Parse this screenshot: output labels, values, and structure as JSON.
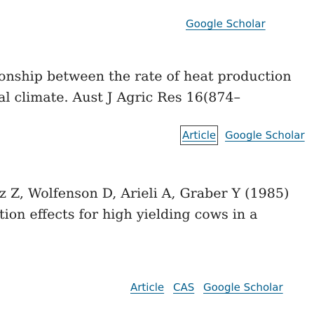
{
  "refs": [
    {
      "links": {
        "scholar": "Google Scholar"
      }
    },
    {
      "lines": [
        "onship between the rate of heat production",
        "al climate. Aust J Agric Res 16(874–"
      ],
      "links": {
        "article": "Article",
        "scholar": "Google Scholar"
      }
    },
    {
      "lines": [
        "z Z, Wolfenson D, Arieli A, Graber Y (1985)",
        "tion effects for high yielding cows in a"
      ],
      "links": {
        "article": "Article",
        "cas": "CAS",
        "scholar": "Google Scholar"
      }
    }
  ],
  "colors": {
    "link": "#025e8d",
    "text": "#222222",
    "background": "#ffffff",
    "focus_box": "#3a3a3a"
  }
}
